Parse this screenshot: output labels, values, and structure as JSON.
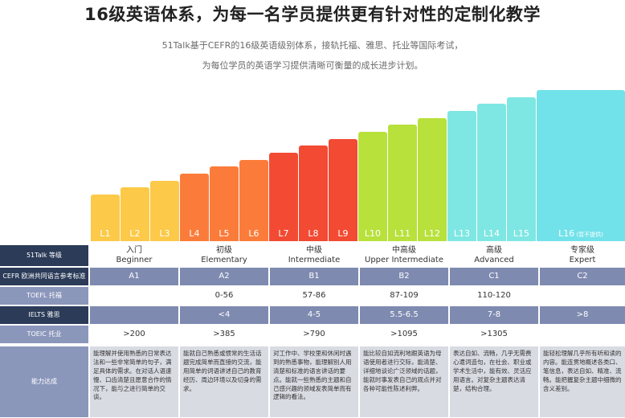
{
  "header": {
    "title": "16级英语体系，为每一名学员提供更有针对性的定制化教学",
    "subtitle_line1": "51Talk基于CEFR的16级英语级别体系，接轨托福、雅思、托业等国际考试，",
    "subtitle_line2": "为每位学员的英语学习提供清晰可衡量的成长进步计划。"
  },
  "chart_data": {
    "type": "bar",
    "categories": [
      "L1",
      "L2",
      "L3",
      "L4",
      "L5",
      "L6",
      "L7",
      "L8",
      "L9",
      "L10",
      "L11",
      "L12",
      "L13",
      "L14",
      "L15",
      "L16"
    ],
    "values": [
      1,
      2,
      3,
      4,
      5,
      6,
      7,
      8,
      9,
      10,
      11,
      12,
      13,
      14,
      15,
      16
    ],
    "last_bar_note": "(暂不提供)",
    "colors": [
      "#fcc948",
      "#fcc948",
      "#fcc948",
      "#fb7c3a",
      "#fb7c3a",
      "#fb7c3a",
      "#f24a33",
      "#f24a33",
      "#f24a33",
      "#b8e13c",
      "#b8e13c",
      "#b8e13c",
      "#7fe7e3",
      "#7fe7e3",
      "#7fe7e3",
      "#72e2ea"
    ]
  },
  "table": {
    "row_labels": {
      "level": "51Talk 等级",
      "cefr": "CEFR 欧洲共同语言参考标准",
      "toefl": "TOEFL 托福",
      "ielts": "IELTS 雅思",
      "toeic": "TOEIC 托业",
      "ability": "能力达成"
    },
    "levels": [
      {
        "cn": "入门",
        "en": "Beginner"
      },
      {
        "cn": "初级",
        "en": "Elementary"
      },
      {
        "cn": "中级",
        "en": "Intermediate"
      },
      {
        "cn": "中高级",
        "en": "Upper Intermediate"
      },
      {
        "cn": "高级",
        "en": "Advanced"
      },
      {
        "cn": "专家级",
        "en": "Expert"
      }
    ],
    "cefr": [
      "A1",
      "A2",
      "B1",
      "B2",
      "C1",
      "C2"
    ],
    "toefl": [
      "",
      "0-56",
      "57-86",
      "87-109",
      "110-120",
      ""
    ],
    "ielts": [
      "",
      "<4",
      "4-5",
      "5.5-6.5",
      "7-8",
      ">8"
    ],
    "toeic": [
      ">200",
      ">385",
      ">790",
      ">1095",
      ">1305",
      ""
    ],
    "ability": [
      "能理解并使用熟悉的日常表达法和一些非常简单的句子，满足具体的需求。在对话人语速慢、口齿清楚且愿意合作的情况下，能与之进行简单的交谈。",
      "能就自己熟悉或惯常的生活话题完成简单而直接的交流，能用简单的词语讲述自己的教育经历、周边环境以及切身的需求。",
      "对工作中、学校里和休闲时遇到的熟悉事物，能理解别人用清楚和标准的语言讲话的要点。能就一些熟悉的主题和自己感兴趣的领域发表简单而有逻辑的看法。",
      "能比较自如流利地跟英语为母语使用者进行交际，能清楚、详细地谈论广泛领域的话题，能就时事发表自己的观点并对各种可能性陈述利弊。",
      "表达自如、流畅，几乎无需费心遣词造句，在社会、职业或学术生活中，能有效、灵活应用语言。对复杂主题表达清楚，结构合理。",
      "能轻松理解几乎所有听和读的内容。能连贯地概述各类口、笔信息，表达自如、精准、流畅。能把握复杂主题中细微的含义差别。"
    ]
  }
}
